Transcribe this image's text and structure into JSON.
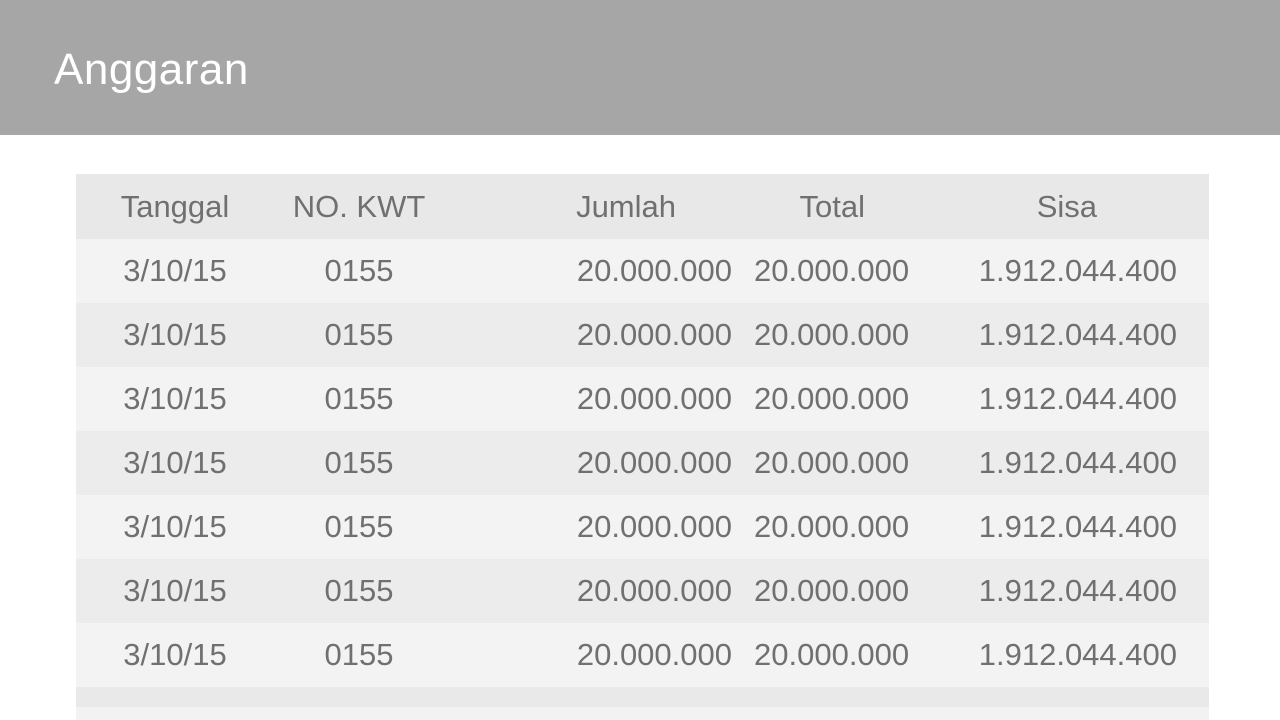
{
  "app_bar": {
    "title": "Anggaran"
  },
  "table": {
    "columns": [
      "Tanggal",
      "NO. KWT",
      "Jumlah",
      "Total",
      "Sisa"
    ],
    "rows": [
      [
        "3/10/15",
        "0155",
        "20.000.000",
        "20.000.000",
        "1.912.044.400"
      ],
      [
        "3/10/15",
        "0155",
        "20.000.000",
        "20.000.000",
        "1.912.044.400"
      ],
      [
        "3/10/15",
        "0155",
        "20.000.000",
        "20.000.000",
        "1.912.044.400"
      ],
      [
        "3/10/15",
        "0155",
        "20.000.000",
        "20.000.000",
        "1.912.044.400"
      ],
      [
        "3/10/15",
        "0155",
        "20.000.000",
        "20.000.000",
        "1.912.044.400"
      ],
      [
        "3/10/15",
        "0155",
        "20.000.000",
        "20.000.000",
        "1.912.044.400"
      ],
      [
        "3/10/15",
        "0155",
        "20.000.000",
        "20.000.000",
        "1.912.044.400"
      ]
    ]
  },
  "colors": {
    "app_bar_background": "#a6a6a6",
    "app_bar_text": "#ffffff",
    "header_row_background": "#e8e8e8",
    "row_background_light": "#f3f3f3",
    "row_background_dark": "#ececec",
    "cell_text": "#707070"
  }
}
